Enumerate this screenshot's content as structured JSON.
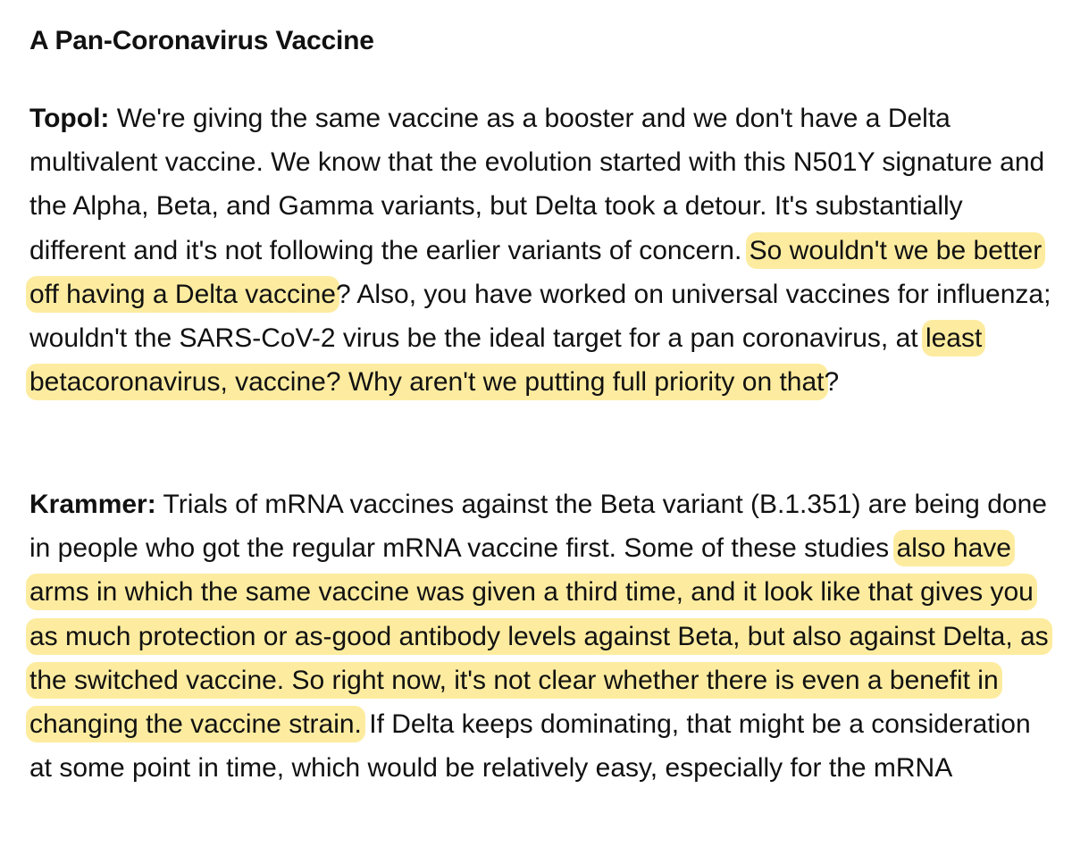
{
  "article": {
    "heading": "A Pan-Coronavirus Vaccine",
    "topol": {
      "speaker": "Topol:",
      "text_1": " We're giving the same vaccine as a booster and we don't have a Delta multivalent vaccine. We know that the evolution started with this N501Y signature and the Alpha, Beta, and Gamma variants, but Delta took a detour. It's substantially different and it's not following the earlier variants of concern. ",
      "highlight_1": "So wouldn't we be better off having a Delta vaccine",
      "text_2": "? Also, you have worked on universal vaccines for influenza; wouldn't the SARS-CoV-2 virus be the ideal target for a pan coronavirus, at ",
      "highlight_2": "least betacoronavirus, vaccine? Why aren't we putting full priority on that",
      "text_3": "?"
    },
    "krammer": {
      "speaker": "Krammer:",
      "text_1": " Trials of mRNA vaccines against the Beta variant (B.1.351) are being done in people who got the regular mRNA vaccine first. Some of these studies ",
      "highlight_1": "also have arms in which the same vaccine was given a third time, and it look like that gives you as much protection or as-good antibody levels against Beta, but also against Delta, as the switched vaccine. So right now, it's not clear whether there is even a benefit in changing the vaccine strain.",
      "text_2": " If Delta keeps dominating, that might be a consideration at some point in time, which would be relatively easy, especially for the mRNA"
    },
    "highlight_color": "#fdeca0"
  }
}
